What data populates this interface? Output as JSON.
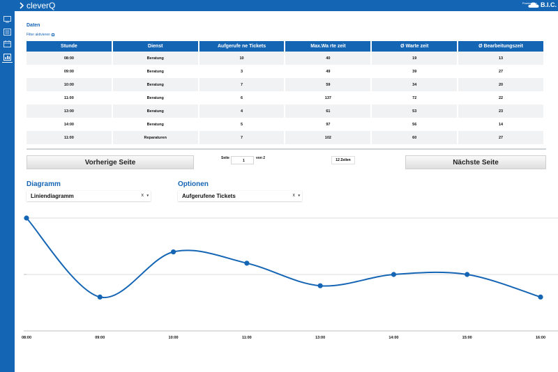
{
  "app": {
    "name": "cleverQ",
    "powered_by": "Powered by",
    "vendor": "B.I.C.",
    "brand_color": "#1565b5"
  },
  "sidebar": {
    "items": [
      {
        "icon": "monitor-icon"
      },
      {
        "icon": "document-icon"
      },
      {
        "icon": "calendar-icon"
      },
      {
        "icon": "chart-icon",
        "active": true
      }
    ]
  },
  "page": {
    "title": "Daten",
    "filter_label": "Filter aktivieren",
    "filter_checked": false
  },
  "table": {
    "columns": [
      "Stunde",
      "Dienst",
      "Aufgerufe ne Tickets",
      "Max.Wa rte zeit",
      "Ø Warte zeit",
      "Ø Bearbeitungszeit"
    ],
    "rows": [
      [
        "08:00",
        "Beratung",
        "10",
        "40",
        "19",
        "13"
      ],
      [
        "09:00",
        "Beratung",
        "3",
        "49",
        "39",
        "27"
      ],
      [
        "10:00",
        "Beratung",
        "7",
        "59",
        "34",
        "20"
      ],
      [
        "11:00",
        "Beratung",
        "6",
        "137",
        "72",
        "22"
      ],
      [
        "13:00",
        "Beratung",
        "4",
        "61",
        "53",
        "23"
      ],
      [
        "14:00",
        "Beratung",
        "5",
        "97",
        "56",
        "14"
      ],
      [
        "11:00",
        "Reparaturen",
        "7",
        "102",
        "60",
        "27"
      ]
    ]
  },
  "pagination": {
    "prev_label": "Vorherige Seite",
    "next_label": "Nächste Seite",
    "page_label": "Seite",
    "page_value": "1",
    "of_label": "von 2",
    "rows_label": "12 Zeilen"
  },
  "controls": {
    "diagram_title": "Diagramm",
    "diagram_value": "Liniendiagramm",
    "options_title": "Optionen",
    "options_value": "Aufgerufene Tickets",
    "clear_symbol": "x",
    "arrow_symbol": "▾"
  },
  "chart_data": {
    "type": "line",
    "x": [
      "08:00",
      "09:00",
      "10:00",
      "11:00",
      "13:00",
      "14:00",
      "15:00",
      "16:00"
    ],
    "series": [
      {
        "values": [
          10,
          3,
          7,
          6,
          4,
          5,
          5,
          3
        ],
        "color": "#1565b5"
      }
    ],
    "ylim": [
      0,
      10
    ],
    "yticks": [
      0,
      5,
      10
    ],
    "grid": true
  }
}
